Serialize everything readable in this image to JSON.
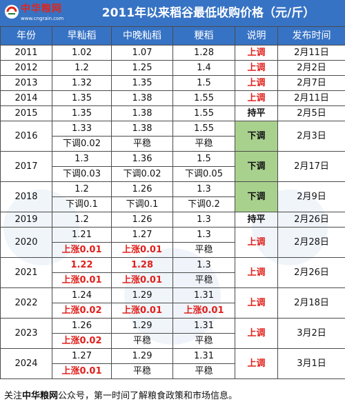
{
  "header": {
    "logo_name": "中华粮网",
    "logo_url": "www.cngrain.com",
    "title": "2011年以来稻谷最低收购价格（元/斤）"
  },
  "colors": {
    "header_bg": "#3773c4",
    "red": "#e0201b",
    "down_bg": "#a9d18e"
  },
  "table": {
    "columns": [
      "年份",
      "早籼稻",
      "中晚籼稻",
      "粳稻",
      "说明",
      "发布时间"
    ],
    "rows": [
      {
        "year": "2011",
        "early": "1.02",
        "mid": "1.07",
        "jap": "1.28",
        "note": "上调",
        "date": "2月11日"
      },
      {
        "year": "2012",
        "early": "1.2",
        "mid": "1.25",
        "jap": "1.4",
        "note": "上调",
        "date": "2月2日"
      },
      {
        "year": "2013",
        "early": "1.32",
        "mid": "1.35",
        "jap": "1.5",
        "note": "上调",
        "date": "2月7日"
      },
      {
        "year": "2014",
        "early": "1.35",
        "mid": "1.38",
        "jap": "1.55",
        "note": "上调",
        "date": "2月11日"
      },
      {
        "year": "2015",
        "early": "1.35",
        "mid": "1.38",
        "jap": "1.55",
        "note": "持平",
        "date": "2月5日"
      },
      {
        "year": "2016",
        "early": "1.33",
        "early_c": "下调0.02",
        "mid": "1.38",
        "mid_c": "平稳",
        "jap": "1.55",
        "jap_c": "平稳",
        "note": "下调",
        "date": "2月3日"
      },
      {
        "year": "2017",
        "early": "1.3",
        "early_c": "下调0.03",
        "mid": "1.36",
        "mid_c": "下调0.02",
        "jap": "1.5",
        "jap_c": "下调0.05",
        "note": "下调",
        "date": "2月17日"
      },
      {
        "year": "2018",
        "early": "1.2",
        "early_c": "下调0.1",
        "mid": "1.26",
        "mid_c": "下调0.1",
        "jap": "1.3",
        "jap_c": "下调0.2",
        "note": "下调",
        "date": "2月9日"
      },
      {
        "year": "2019",
        "early": "1.2",
        "mid": "1.26",
        "jap": "1.3",
        "note": "持平",
        "date": "2月26日"
      },
      {
        "year": "2020",
        "early": "1.21",
        "early_c": "上涨0.01",
        "mid": "1.27",
        "mid_c": "上涨0.01",
        "jap": "1.3",
        "jap_c": "平稳",
        "note": "上调",
        "date": "2月28日"
      },
      {
        "year": "2021",
        "early": "1.22",
        "early_c": "上涨0.01",
        "mid": "1.28",
        "mid_c": "上涨0.01",
        "jap": "1.3",
        "jap_c": "平稳",
        "note": "上调",
        "date": "2月26日"
      },
      {
        "year": "2022",
        "early": "1.24",
        "early_c": "上涨0.02",
        "mid": "1.29",
        "mid_c": "上涨0.01",
        "jap": "1.31",
        "jap_c": "上涨0.01",
        "note": "上调",
        "date": "2月18日"
      },
      {
        "year": "2023",
        "early": "1.26",
        "early_c": "上涨0.02",
        "mid": "1.29",
        "mid_c": "平稳",
        "jap": "1.31",
        "jap_c": "平稳",
        "note": "上调",
        "date": "3月2日"
      },
      {
        "year": "2024",
        "early": "1.27",
        "early_c": "上涨0.01",
        "mid": "1.29",
        "mid_c": "平稳",
        "jap": "1.31",
        "jap_c": "平稳",
        "note": "上调",
        "date": "3月1日"
      }
    ]
  },
  "footer": {
    "prefix": "关注",
    "brand": "中华粮网",
    "suffix": "公众号，第一时间了解粮食政策和市场信息。"
  }
}
